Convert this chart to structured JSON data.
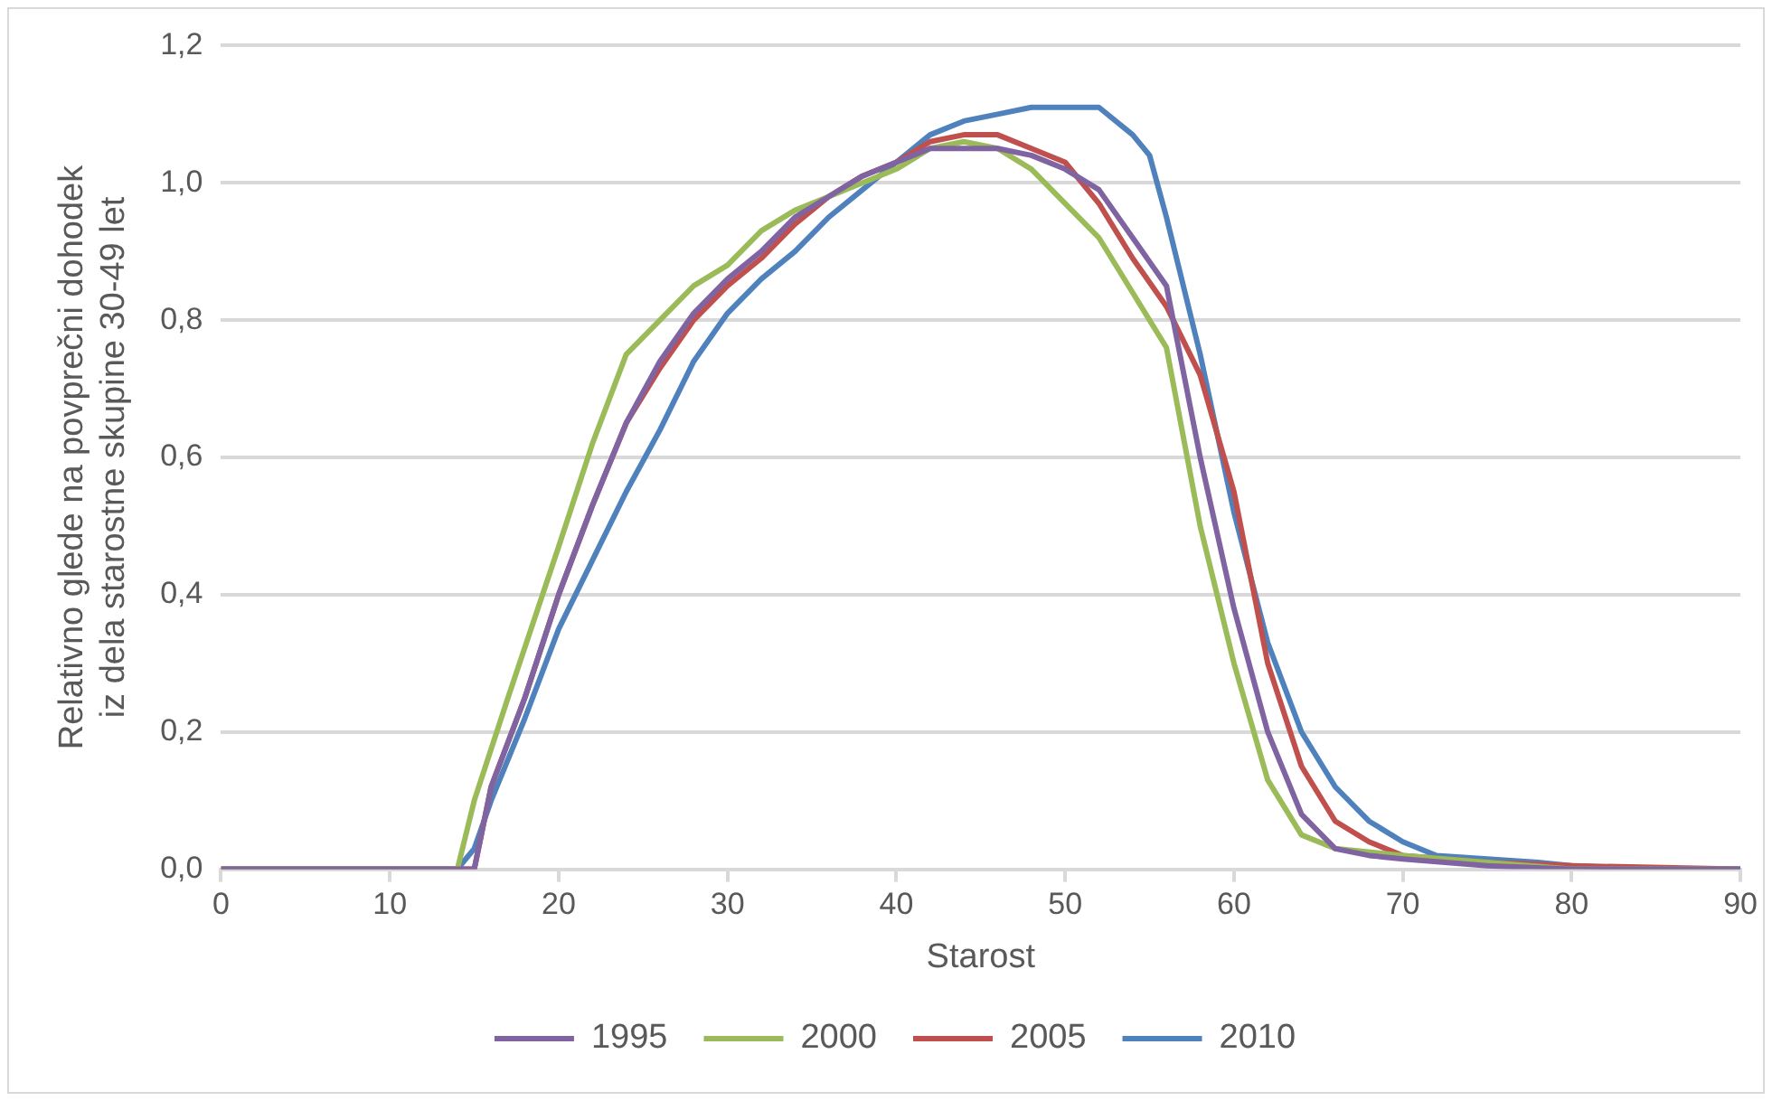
{
  "chart_data": {
    "type": "line",
    "xlabel": "Starost",
    "ylabel": "Relativno glede na povprečni dohodek iz dela starostne skupine 30-49 let",
    "xlim": [
      0,
      90
    ],
    "xticks": [
      0,
      10,
      20,
      30,
      40,
      50,
      60,
      70,
      80,
      90
    ],
    "ylim": [
      0,
      1.2
    ],
    "yticks": [
      {
        "value": 0,
        "label": "0,0"
      },
      {
        "value": 0.2,
        "label": "0,2"
      },
      {
        "value": 0.4,
        "label": "0,4"
      },
      {
        "value": 0.6,
        "label": "0,6"
      },
      {
        "value": 0.8,
        "label": "0,8"
      },
      {
        "value": 1,
        "label": "1,0"
      },
      {
        "value": 1.2,
        "label": "1,2"
      }
    ],
    "grid": "y",
    "legend": "bottom",
    "marker": "none",
    "line_style": "solid",
    "series": [
      {
        "name": "1995",
        "color": "#8064a2",
        "x": [
          0,
          14,
          15,
          16,
          18,
          20,
          22,
          24,
          26,
          28,
          30,
          32,
          34,
          36,
          38,
          40,
          42,
          44,
          46,
          48,
          50,
          52,
          54,
          56,
          58,
          60,
          62,
          64,
          66,
          68,
          70,
          75,
          80,
          90
        ],
        "values": [
          0,
          0,
          0,
          0.12,
          0.25,
          0.4,
          0.53,
          0.65,
          0.74,
          0.81,
          0.86,
          0.9,
          0.95,
          0.98,
          1.01,
          1.03,
          1.05,
          1.05,
          1.05,
          1.04,
          1.02,
          0.99,
          0.92,
          0.85,
          0.6,
          0.38,
          0.2,
          0.08,
          0.03,
          0.02,
          0.015,
          0.005,
          0,
          0
        ]
      },
      {
        "name": "2000",
        "color": "#9bbb59",
        "x": [
          0,
          14,
          15,
          17,
          20,
          22,
          24,
          26,
          28,
          30,
          32,
          34,
          36,
          38,
          40,
          42,
          44,
          46,
          48,
          50,
          52,
          54,
          56,
          58,
          60,
          62,
          64,
          66,
          70,
          75,
          80,
          90
        ],
        "values": [
          0,
          0,
          0.1,
          0.25,
          0.47,
          0.62,
          0.75,
          0.8,
          0.85,
          0.88,
          0.93,
          0.96,
          0.98,
          1.0,
          1.02,
          1.05,
          1.06,
          1.05,
          1.02,
          0.97,
          0.92,
          0.84,
          0.76,
          0.5,
          0.3,
          0.13,
          0.05,
          0.03,
          0.02,
          0.01,
          0,
          0
        ]
      },
      {
        "name": "2005",
        "color": "#c0504d",
        "x": [
          0,
          15,
          16,
          18,
          20,
          22,
          24,
          26,
          28,
          30,
          32,
          34,
          36,
          38,
          40,
          42,
          44,
          46,
          48,
          50,
          52,
          54,
          56,
          58,
          60,
          62,
          64,
          66,
          68,
          70,
          75,
          80,
          90
        ],
        "values": [
          0,
          0,
          0.12,
          0.25,
          0.4,
          0.53,
          0.65,
          0.73,
          0.8,
          0.85,
          0.89,
          0.94,
          0.98,
          1.01,
          1.03,
          1.06,
          1.07,
          1.07,
          1.05,
          1.03,
          0.97,
          0.89,
          0.82,
          0.72,
          0.55,
          0.3,
          0.15,
          0.07,
          0.04,
          0.02,
          0.01,
          0.005,
          0
        ]
      },
      {
        "name": "2010",
        "color": "#4f81bd",
        "x": [
          0,
          14,
          15,
          16,
          18,
          20,
          22,
          24,
          26,
          28,
          30,
          32,
          34,
          36,
          38,
          40,
          42,
          44,
          46,
          48,
          50,
          52,
          54,
          55,
          56,
          58,
          60,
          62,
          64,
          66,
          68,
          70,
          72,
          75,
          78,
          80,
          85,
          90
        ],
        "values": [
          0,
          0,
          0.03,
          0.1,
          0.22,
          0.35,
          0.45,
          0.55,
          0.64,
          0.74,
          0.81,
          0.86,
          0.9,
          0.95,
          0.99,
          1.03,
          1.07,
          1.09,
          1.1,
          1.11,
          1.11,
          1.11,
          1.07,
          1.04,
          0.95,
          0.75,
          0.52,
          0.33,
          0.2,
          0.12,
          0.07,
          0.04,
          0.02,
          0.015,
          0.01,
          0.005,
          0,
          0
        ]
      }
    ]
  }
}
